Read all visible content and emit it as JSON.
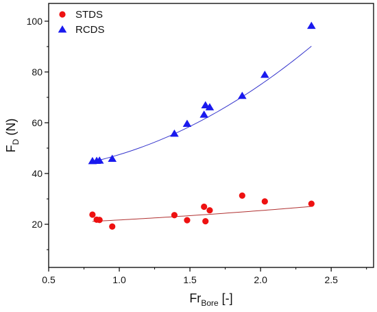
{
  "chart_data": {
    "type": "scatter",
    "xlabel": {
      "main": "Fr",
      "sub": "Bore",
      "suffix": " [-]"
    },
    "ylabel": {
      "main": "F",
      "sub": "D",
      "suffix": " (N)"
    },
    "xlim": [
      0.5,
      2.8
    ],
    "ylim": [
      3,
      107
    ],
    "xticks": [
      0.5,
      1.0,
      1.5,
      2.0,
      2.5
    ],
    "xtick_labels": [
      "0.5",
      "1.0",
      "1.5",
      "2.0",
      "2.5"
    ],
    "yticks": [
      20,
      40,
      60,
      80,
      100
    ],
    "ytick_labels": [
      "20",
      "40",
      "60",
      "80",
      "100"
    ],
    "grid": false,
    "legend_position": "top-left",
    "series": [
      {
        "name": "STDS",
        "marker": "circle",
        "color": "#ee1111",
        "trendline_color": "#b03030",
        "points": [
          [
            0.81,
            23.8
          ],
          [
            0.84,
            21.8
          ],
          [
            0.86,
            21.7
          ],
          [
            0.95,
            19.1
          ],
          [
            1.39,
            23.6
          ],
          [
            1.48,
            21.6
          ],
          [
            1.6,
            26.9
          ],
          [
            1.61,
            21.2
          ],
          [
            1.64,
            25.5
          ],
          [
            1.87,
            31.3
          ],
          [
            2.03,
            29.0
          ],
          [
            2.36,
            28.1
          ]
        ],
        "trend": {
          "from": 0.81,
          "to": 2.36,
          "coef": [
            19.2,
            1.9,
            0.6
          ]
        }
      },
      {
        "name": "RCDS",
        "marker": "triangle",
        "color": "#1a1aee",
        "trendline_color": "#3333cc",
        "points": [
          [
            0.81,
            44.9
          ],
          [
            0.84,
            45.0
          ],
          [
            0.86,
            45.1
          ],
          [
            0.95,
            45.8
          ],
          [
            1.39,
            55.7
          ],
          [
            1.48,
            59.6
          ],
          [
            1.6,
            63.2
          ],
          [
            1.61,
            66.9
          ],
          [
            1.64,
            66.1
          ],
          [
            1.87,
            70.6
          ],
          [
            2.03,
            78.9
          ],
          [
            2.36,
            98.2
          ]
        ],
        "trend": {
          "from": 0.81,
          "to": 2.36,
          "coef": [
            41.3,
            -4.55,
            10.7
          ]
        }
      }
    ]
  }
}
